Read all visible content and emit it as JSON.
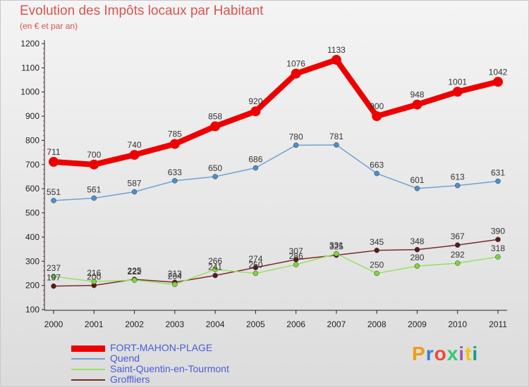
{
  "header": {
    "title": "Evolution des Impôts locaux par Habitant",
    "subtitle": "(en € et par an)"
  },
  "logo": {
    "text": "Proxiti",
    "colors": [
      "#f39c12",
      "#3b7dd8",
      "#e74c3c",
      "#2ecc71",
      "#9b59b6",
      "#f1c40f",
      "#16a085"
    ]
  },
  "chart_data": {
    "type": "line",
    "title": "Evolution des Impôts locaux par Habitant",
    "subtitle": "(en € et par an)",
    "x": [
      2000,
      2001,
      2002,
      2003,
      2004,
      2005,
      2006,
      2007,
      2008,
      2009,
      2010,
      2011
    ],
    "ylim": [
      100,
      1200
    ],
    "yticks": [
      100,
      200,
      300,
      400,
      500,
      600,
      700,
      800,
      900,
      1000,
      1100,
      1200
    ],
    "grid": false,
    "legend": "bottom",
    "series": [
      {
        "name": "FORT-MAHON-PLAGE",
        "color": "#ee0000",
        "values": [
          711,
          700,
          740,
          785,
          858,
          920,
          1076,
          1133,
          900,
          948,
          1001,
          1042
        ]
      },
      {
        "name": "Quend",
        "color": "#6fa2d4",
        "values": [
          551,
          561,
          587,
          633,
          650,
          686,
          780,
          781,
          663,
          601,
          613,
          631
        ]
      },
      {
        "name": "Saint-Quentin-en-Tourmont",
        "color": "#99e060",
        "values": [
          237,
          216,
          222,
          204,
          266,
          250,
          286,
          331,
          250,
          280,
          292,
          318
        ]
      },
      {
        "name": "Groffliers",
        "color": "#7a2a2a",
        "values": [
          197,
          200,
          225,
          213,
          241,
          274,
          307,
          325,
          345,
          348,
          367,
          390
        ]
      }
    ]
  }
}
